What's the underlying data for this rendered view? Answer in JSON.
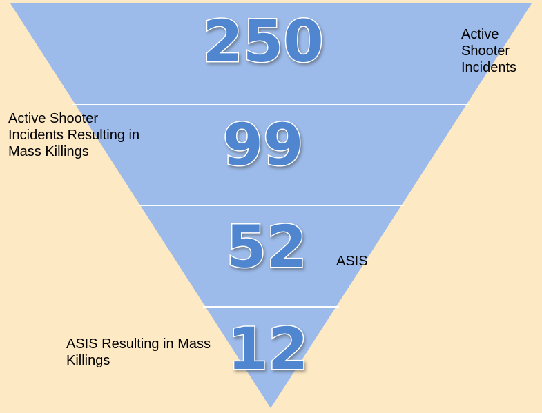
{
  "levels": [
    {
      "value": "250",
      "label": "Active Shooter Incidents"
    },
    {
      "value": "99",
      "label": "Active Shooter Incidents Resulting in Mass Killings"
    },
    {
      "value": "52",
      "label": "ASIS"
    },
    {
      "value": "12",
      "label": "ASIS Resulting in Mass Killings"
    }
  ]
}
